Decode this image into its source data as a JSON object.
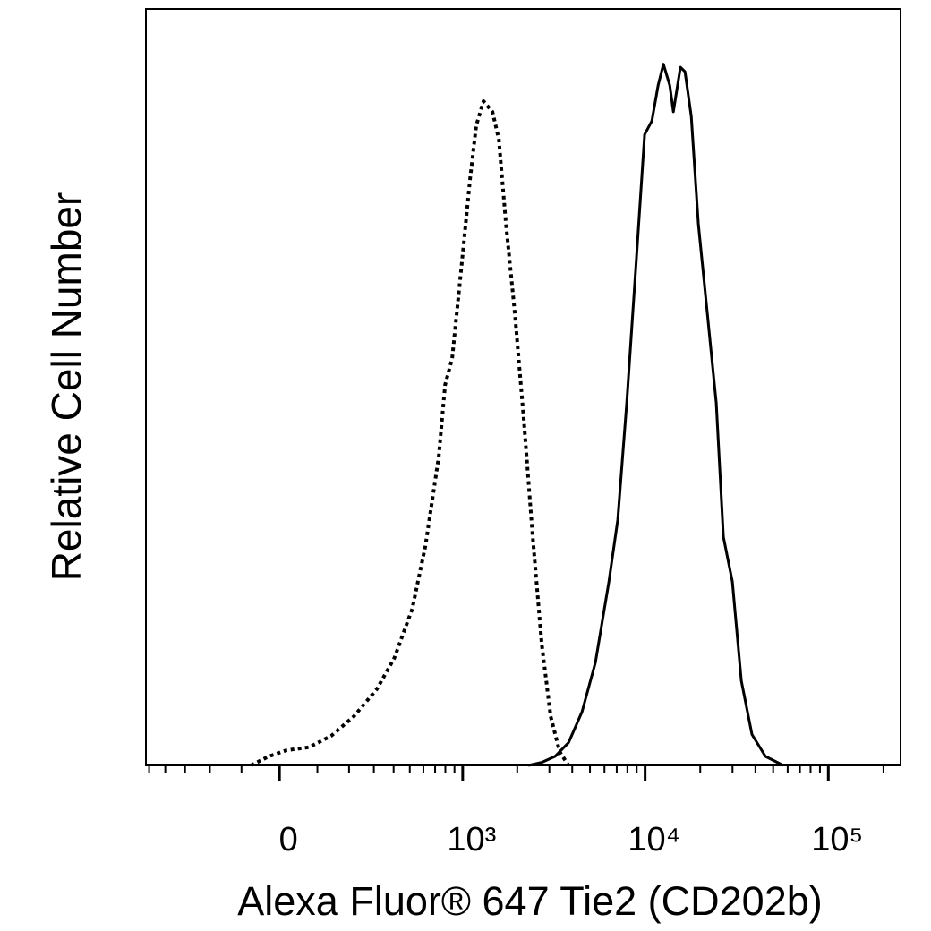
{
  "chart_data": {
    "type": "line",
    "xlabel": "Alexa Fluor® 647  Tie2 (CD202b)",
    "ylabel": "Relative Cell Number",
    "xscale": "biexponential",
    "xlim": [
      -522,
      247900
    ],
    "ylim": [
      0,
      100
    ],
    "xticks": [
      0,
      {
        "value": 1000,
        "label": "10³"
      },
      {
        "value": 10000,
        "label": "10⁴"
      },
      {
        "value": 100000,
        "label": "10⁵"
      }
    ],
    "xminorticks": [
      -500,
      -400,
      -300,
      -200,
      -100,
      100,
      200,
      300,
      400,
      500,
      600,
      700,
      800,
      900,
      2000,
      3000,
      4000,
      5000,
      6000,
      7000,
      8000,
      9000,
      20000,
      30000,
      40000,
      50000,
      60000,
      70000,
      80000,
      90000,
      200000
    ],
    "series": [
      {
        "color": "#000000",
        "style": "dotted",
        "x": [
          -74,
          -27,
          18,
          77,
          141,
          218,
          314,
          404,
          517,
          616,
          734,
          797,
          874,
          982,
          1099,
          1190,
          1305,
          1462,
          1584,
          1735,
          1941,
          2175,
          2432,
          2725,
          3048,
          3414,
          3820
        ],
        "values": [
          0,
          1.2,
          2.0,
          2.4,
          3.9,
          6.5,
          10.1,
          14.2,
          20.7,
          29.0,
          40.8,
          50.3,
          53.8,
          65.7,
          77.5,
          84.6,
          87.8,
          86.4,
          82.8,
          71.6,
          59.8,
          45.6,
          30.2,
          16.0,
          6.5,
          1.8,
          0
        ]
      },
      {
        "color": "#000000",
        "style": "solid",
        "x": [
          2301,
          2725,
          3226,
          3820,
          4525,
          5353,
          6343,
          7090,
          7939,
          8888,
          9938,
          10888,
          11777,
          12585,
          13635,
          14261,
          15594,
          16503,
          17857,
          19533,
          21856,
          24462,
          26765,
          29936,
          33512,
          38319,
          45369,
          56802
        ],
        "values": [
          0,
          0.4,
          1.2,
          3.0,
          7.1,
          13.6,
          24.3,
          32.5,
          47.9,
          65.7,
          83.4,
          85.2,
          89.9,
          92.7,
          89.9,
          86.4,
          92.3,
          91.7,
          85.8,
          71.6,
          59.8,
          47.9,
          30.2,
          24.3,
          11.2,
          4.1,
          1.2,
          0
        ]
      }
    ]
  }
}
